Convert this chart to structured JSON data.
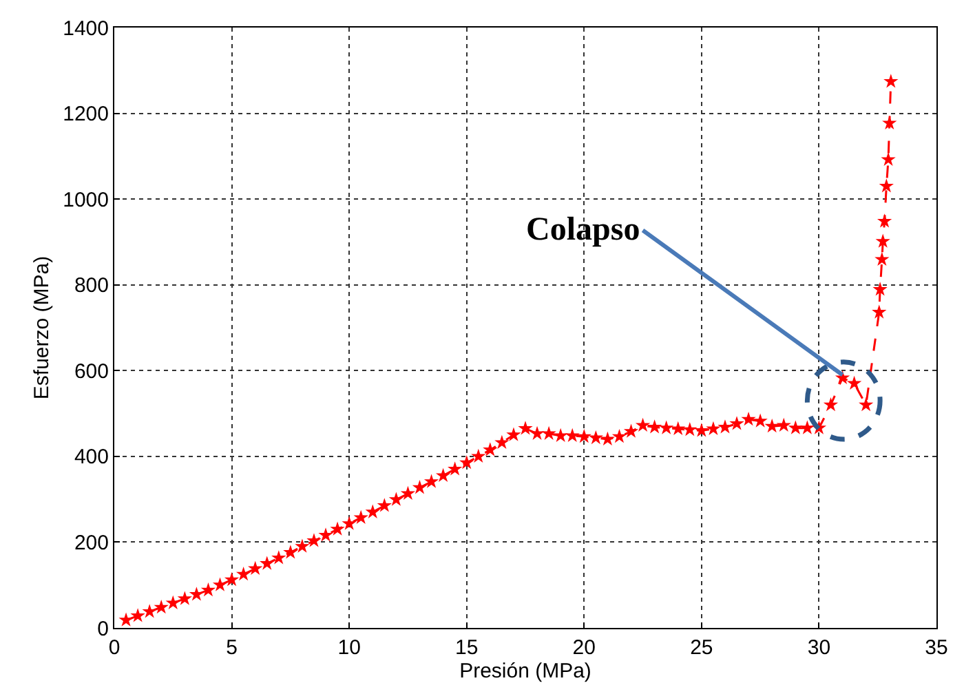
{
  "chart_data": {
    "type": "line",
    "xlabel": "Presión (MPa)",
    "ylabel": "Esfuerzo (MPa)",
    "xlim": [
      0,
      35
    ],
    "xticks": [
      0,
      5,
      10,
      15,
      20,
      25,
      30,
      35
    ],
    "ylim": [
      0,
      1400
    ],
    "yticks": [
      0,
      200,
      400,
      600,
      800,
      1000,
      1200,
      1400
    ],
    "grid": true,
    "marker": "star",
    "line_style": "dashed",
    "annotations": [
      {
        "text": "Colapso",
        "x": 31,
        "y": 590
      }
    ],
    "series": [
      {
        "color": "#ff0000",
        "x": [
          0.5,
          1,
          1.5,
          2,
          2.5,
          3,
          3.5,
          4,
          4.5,
          5,
          5.5,
          6,
          6.5,
          7,
          7.5,
          8,
          8.5,
          9,
          9.5,
          10,
          10.5,
          11,
          11.5,
          12,
          12.5,
          13,
          13.5,
          14,
          14.5,
          15,
          15.5,
          16,
          16.5,
          17,
          17.5,
          18,
          18.5,
          19,
          19.5,
          20,
          20.5,
          21,
          21.5,
          22,
          22.5,
          23,
          23.5,
          24,
          24.5,
          25,
          25.5,
          26,
          26.5,
          27,
          27.5,
          28,
          28.5,
          29,
          29.5,
          30,
          30.5,
          31,
          31.5,
          32,
          32.56,
          32.6,
          32.68,
          32.72,
          32.79,
          32.87,
          32.95,
          33.0,
          33.06
        ],
        "values": [
          18,
          28,
          38,
          48,
          58,
          68,
          78,
          88,
          100,
          112,
          125,
          138,
          150,
          163,
          176,
          190,
          203,
          216,
          230,
          243,
          257,
          270,
          285,
          299,
          313,
          327,
          341,
          355,
          370,
          385,
          400,
          415,
          432,
          450,
          465,
          453,
          453,
          448,
          448,
          446,
          443,
          440,
          446,
          458,
          472,
          468,
          466,
          464,
          462,
          460,
          464,
          468,
          476,
          486,
          482,
          470,
          472,
          466,
          466,
          466,
          520,
          583,
          570,
          520,
          736,
          789,
          859,
          901,
          948,
          1030,
          1092,
          1177,
          1274
        ]
      }
    ]
  }
}
